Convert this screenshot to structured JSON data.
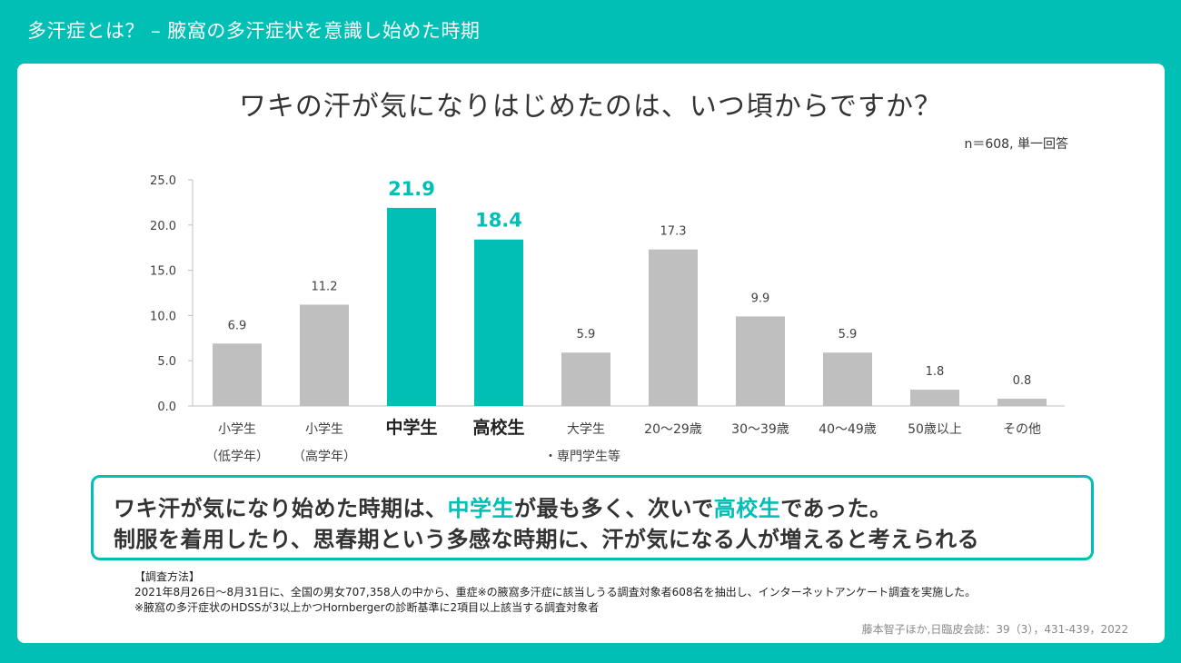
{
  "header": {
    "title": "多汗症とは？ – 腋窩の多汗症状を意識し始めた時期"
  },
  "chart_heading": "ワキの汗が気になりはじめたのは、いつ頃からですか？",
  "sample_note": "n＝608, 単一回答",
  "colors": {
    "accent": "#00BFB5",
    "bar_default": "#BFBFBF",
    "text": "#333333"
  },
  "chart_data": {
    "type": "bar",
    "title": "ワキの汗が気になりはじめたのは、いつ頃からですか？",
    "xlabel": "",
    "ylabel": "",
    "ylim": [
      0,
      25
    ],
    "y_ticks": [
      "0.0",
      "5.0",
      "10.0",
      "15.0",
      "20.0",
      "25.0"
    ],
    "categories": [
      [
        "小学生",
        "（低学年）"
      ],
      [
        "小学生",
        "（高学年）"
      ],
      [
        "中学生"
      ],
      [
        "高校生"
      ],
      [
        "大学生",
        "・専門学生等"
      ],
      [
        "20～29歳"
      ],
      [
        "30～39歳"
      ],
      [
        "40～49歳"
      ],
      [
        "50歳以上"
      ],
      [
        "その他"
      ]
    ],
    "values": [
      6.9,
      11.2,
      21.9,
      18.4,
      5.9,
      17.3,
      9.9,
      5.9,
      1.8,
      0.8
    ],
    "value_labels": [
      "6.9",
      "11.2",
      "21.9",
      "18.4",
      "5.9",
      "17.3",
      "9.9",
      "5.9",
      "1.8",
      "0.8"
    ],
    "highlighted": [
      false,
      false,
      true,
      true,
      false,
      false,
      false,
      false,
      false,
      false
    ]
  },
  "callout": {
    "line1_a": "ワキ汗が気になり始めた時期は、",
    "line1_hl1": "中学生",
    "line1_b": "が最も多く、次いで",
    "line1_hl2": "高校生",
    "line1_c": "であった。",
    "line2": "制服を着用したり、思春期という多感な時期に、汗が気になる人が増えると考えられる"
  },
  "method": {
    "heading": "【調査方法】",
    "line1": "2021年8月26日～8月31日に、全国の男女707,358人の中から、重症※の腋窩多汗症に該当しうる調査対象者608名を抽出し、インターネットアンケート調査を実施した。",
    "line2": "※腋窩の多汗症状のHDSSが3以上かつHornbergerの診断基準に2項目以上該当する調査対象者"
  },
  "citation": "藤本智子ほか,日臨皮会誌：39（3），431-439，2022"
}
